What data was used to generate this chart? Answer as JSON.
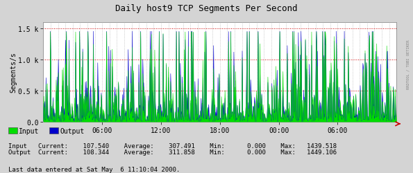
{
  "title": "Daily host9 TCP Segments Per Second",
  "ylabel": "Segments/s",
  "xlabel_ticks": [
    "06:00",
    "12:00",
    "18:00",
    "00:00",
    "06:00"
  ],
  "x_tick_positions": [
    0.1667,
    0.3333,
    0.5,
    0.6667,
    0.8333
  ],
  "ylim": [
    0,
    1600
  ],
  "yticks": [
    0.0,
    500.0,
    1000.0,
    1500.0
  ],
  "ytick_labels": [
    "0.0",
    "0.5 k",
    "1.0 k",
    "1.5 k"
  ],
  "bg_color": "#d4d4d4",
  "plot_bg_color": "#ffffff",
  "grid_color_h": "#cc0000",
  "grid_color_v": "#aaaaaa",
  "input_color": "#00dd00",
  "output_color": "#0000cc",
  "legend_input": "Input",
  "legend_output": "Output",
  "stats_line1": "Input   Current:    107.540    Average:    307.491    Min:      0.000    Max:   1439.518",
  "stats_line2": "Output  Current:    108.344    Average:    311.858    Min:      0.000    Max:   1449.106",
  "footer_text": "Last data entered at Sat May  6 11:10:04 2000.",
  "rrdtool_text": "RRDTOOL / TOBI OETIKER",
  "n_points": 800,
  "seed": 7
}
